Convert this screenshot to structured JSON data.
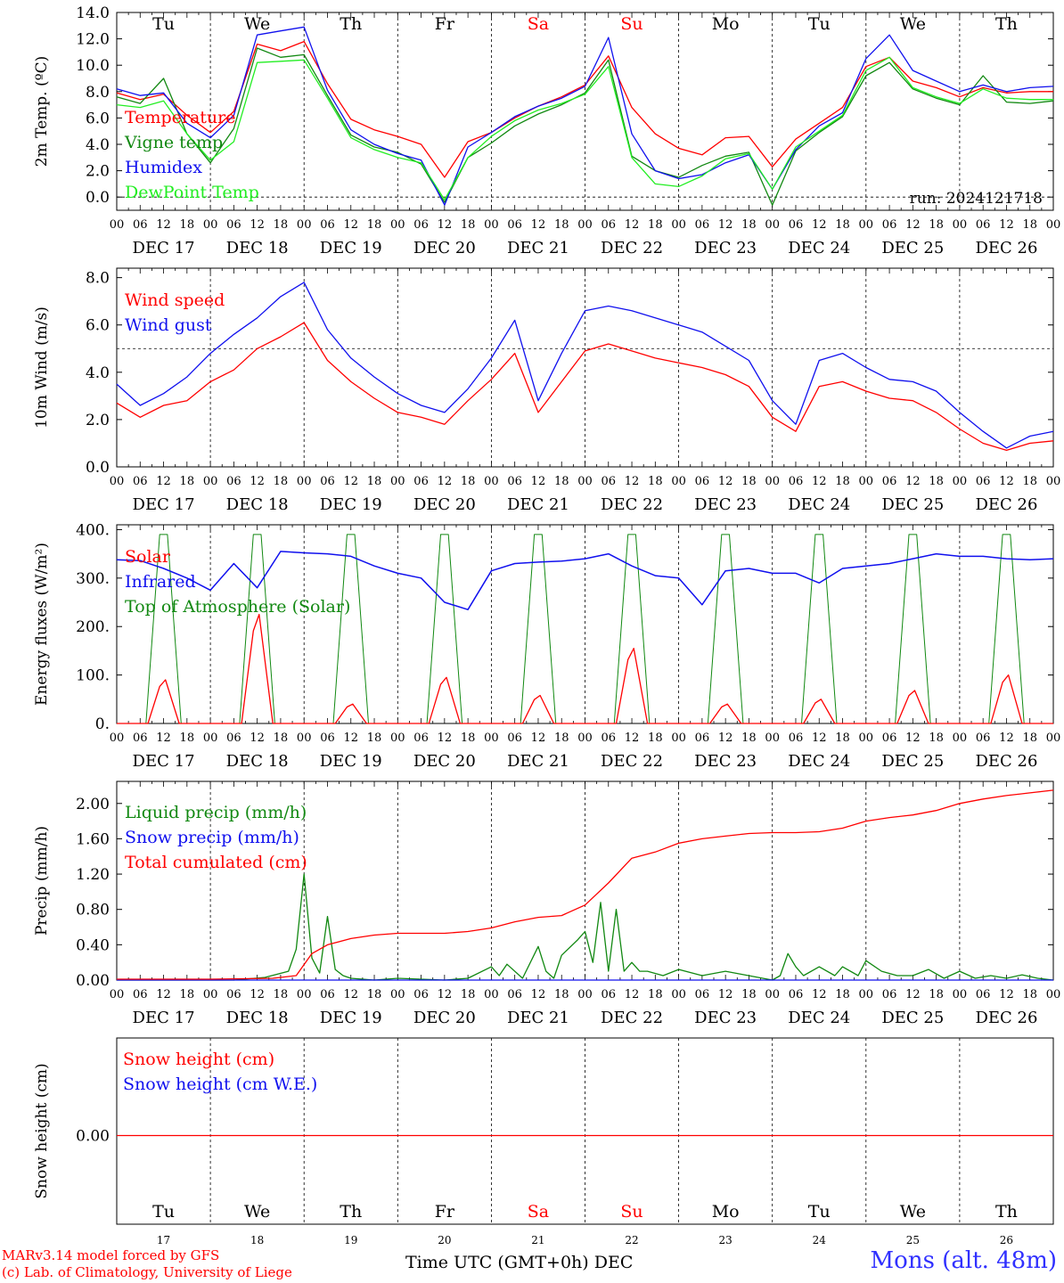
{
  "footer": {
    "credit_line1": "MARv3.14 model forced by GFS",
    "credit_line2": "(c) Lab. of Climatology, University of Liege",
    "xaxis_title": "Time UTC (GMT+0h) DEC",
    "station": "Mons (alt. 48m)"
  },
  "colors": {
    "red": "#ff0000",
    "green": "#118811",
    "blue": "#1010ee",
    "lightgreen": "#22ee22",
    "weekend": "#ff0000"
  },
  "chart_data": [
    {
      "type": "line",
      "id": "temp",
      "ylabel": "2m Temp. (ºC)",
      "ylim": [
        -1,
        14
      ],
      "yticks": [
        "14.0",
        "12.0",
        "10.0",
        "8.0",
        "6.0",
        "4.0",
        "2.0",
        "0.0"
      ],
      "ytick_values": [
        14,
        12,
        10,
        8,
        6,
        4,
        2,
        0
      ],
      "reference_line": 0,
      "annotation": "run: 2024121718",
      "day_labels_top": [
        "Tu",
        "We",
        "Th",
        "Fr",
        "Sa",
        "Su",
        "Mo",
        "Tu",
        "We",
        "Th"
      ],
      "weekend_days": [
        4,
        5
      ],
      "hour_ticks": [
        "00",
        "06",
        "12",
        "18"
      ],
      "end_tick": "00",
      "date_labels": [
        "DEC 17",
        "DEC 18",
        "DEC 19",
        "DEC 20",
        "DEC 21",
        "DEC 22",
        "DEC 23",
        "DEC 24",
        "DEC 25",
        "DEC 26"
      ],
      "x_hours": [
        0,
        6,
        12,
        18,
        24,
        30,
        36,
        42,
        48,
        54,
        60,
        66,
        72,
        78,
        84,
        90,
        96,
        102,
        108,
        114,
        120,
        126,
        132,
        138,
        144,
        150,
        156,
        162,
        168,
        174,
        180,
        186,
        192,
        198,
        204,
        210,
        216,
        222,
        228,
        234,
        240
      ],
      "series": [
        {
          "name": "Temperature",
          "color_key": "red",
          "values": [
            7.9,
            7.4,
            7.8,
            6.2,
            4.9,
            6.5,
            11.6,
            11.1,
            11.8,
            8.6,
            5.9,
            5.1,
            4.6,
            4.0,
            1.5,
            4.2,
            4.9,
            6.0,
            6.9,
            7.6,
            8.5,
            10.7,
            6.8,
            4.8,
            3.7,
            3.2,
            4.5,
            4.6,
            2.3,
            4.4,
            5.6,
            6.8,
            9.9,
            10.6,
            8.8,
            8.3,
            7.6,
            8.3,
            7.9,
            8.0,
            8.0
          ]
        },
        {
          "name": "Vigne temp",
          "color_key": "green",
          "values": [
            7.6,
            7.1,
            9.0,
            4.8,
            2.6,
            5.2,
            11.3,
            10.6,
            10.8,
            7.7,
            4.7,
            3.8,
            3.4,
            2.5,
            -0.4,
            3.0,
            4.1,
            5.4,
            6.3,
            7.0,
            7.9,
            10.4,
            3.1,
            2.0,
            1.5,
            2.4,
            3.1,
            3.4,
            -0.6,
            3.5,
            4.9,
            6.1,
            9.2,
            10.2,
            8.2,
            7.5,
            7.0,
            9.2,
            7.2,
            7.1,
            7.3
          ]
        },
        {
          "name": "Humidex",
          "color_key": "blue",
          "values": [
            8.2,
            7.7,
            7.9,
            5.6,
            4.5,
            6.2,
            12.3,
            12.6,
            12.9,
            8.1,
            5.1,
            4.0,
            3.3,
            2.8,
            -0.6,
            3.8,
            4.9,
            6.1,
            6.9,
            7.5,
            8.4,
            12.1,
            4.8,
            2.0,
            1.4,
            1.7,
            2.6,
            3.2,
            0.6,
            3.6,
            5.4,
            6.4,
            10.5,
            12.3,
            9.6,
            8.8,
            8.0,
            8.5,
            8.0,
            8.3,
            8.4
          ]
        },
        {
          "name": "DewPoint Temp",
          "color_key": "lightgreen",
          "values": [
            7.0,
            6.8,
            7.3,
            4.8,
            2.8,
            4.2,
            10.2,
            10.3,
            10.4,
            7.5,
            4.5,
            3.6,
            3.0,
            2.6,
            -0.2,
            3.0,
            4.6,
            5.8,
            6.6,
            7.1,
            7.8,
            9.9,
            3.0,
            1.0,
            0.8,
            1.6,
            2.9,
            3.3,
            0.6,
            3.8,
            5.0,
            6.2,
            9.6,
            10.6,
            8.3,
            7.6,
            7.1,
            8.2,
            7.5,
            7.4,
            7.4
          ]
        }
      ]
    },
    {
      "type": "line",
      "id": "wind",
      "ylabel": "10m Wind (m/s)",
      "ylim": [
        0,
        8.4
      ],
      "yticks": [
        "8.0",
        "6.0",
        "4.0",
        "2.0",
        "0.0"
      ],
      "ytick_values": [
        8,
        6,
        4,
        2,
        0
      ],
      "reference_line": 5,
      "hour_ticks": [
        "00",
        "06",
        "12",
        "18"
      ],
      "end_tick": "00",
      "date_labels": [
        "DEC 17",
        "DEC 18",
        "DEC 19",
        "DEC 20",
        "DEC 21",
        "DEC 22",
        "DEC 23",
        "DEC 24",
        "DEC 25",
        "DEC 26"
      ],
      "x_hours": [
        0,
        6,
        12,
        18,
        24,
        30,
        36,
        42,
        48,
        54,
        60,
        66,
        72,
        78,
        84,
        90,
        96,
        102,
        108,
        114,
        120,
        126,
        132,
        138,
        144,
        150,
        156,
        162,
        168,
        174,
        180,
        186,
        192,
        198,
        204,
        210,
        216,
        222,
        228,
        234,
        240
      ],
      "series": [
        {
          "name": "Wind speed",
          "color_key": "red",
          "values": [
            2.7,
            2.1,
            2.6,
            2.8,
            3.6,
            4.1,
            5.0,
            5.5,
            6.1,
            4.5,
            3.6,
            2.9,
            2.3,
            2.1,
            1.8,
            2.8,
            3.7,
            4.8,
            2.3,
            3.6,
            4.9,
            5.2,
            4.9,
            4.6,
            4.4,
            4.2,
            3.9,
            3.4,
            2.1,
            1.5,
            3.4,
            3.6,
            3.2,
            2.9,
            2.8,
            2.3,
            1.6,
            1.0,
            0.7,
            1.0,
            1.1
          ]
        },
        {
          "name": "Wind gust",
          "color_key": "blue",
          "values": [
            3.5,
            2.6,
            3.1,
            3.8,
            4.8,
            5.6,
            6.3,
            7.2,
            7.8,
            5.8,
            4.6,
            3.8,
            3.1,
            2.6,
            2.3,
            3.3,
            4.6,
            6.2,
            2.8,
            4.8,
            6.6,
            6.8,
            6.6,
            6.3,
            6.0,
            5.7,
            5.1,
            4.5,
            2.8,
            1.8,
            4.5,
            4.8,
            4.2,
            3.7,
            3.6,
            3.2,
            2.3,
            1.5,
            0.8,
            1.3,
            1.5
          ]
        }
      ]
    },
    {
      "type": "line",
      "id": "energy",
      "ylabel": "Energy fluxes (W/m²)",
      "ylim": [
        0,
        410
      ],
      "yticks": [
        "400.",
        "300.",
        "200.",
        "100.",
        "0."
      ],
      "ytick_values": [
        400,
        300,
        200,
        100,
        0
      ],
      "hour_ticks": [
        "00",
        "06",
        "12",
        "18"
      ],
      "end_tick": "00",
      "date_labels": [
        "DEC 17",
        "DEC 18",
        "DEC 19",
        "DEC 20",
        "DEC 21",
        "DEC 22",
        "DEC 23",
        "DEC 24",
        "DEC 25",
        "DEC 26"
      ],
      "day_peaks": {
        "toa_peak": [
          390,
          390,
          390,
          390,
          390,
          390,
          390,
          390,
          390,
          390
        ],
        "solar_peak": [
          90,
          225,
          40,
          95,
          58,
          155,
          40,
          50,
          68,
          100
        ]
      },
      "ir_x_hours": [
        0,
        6,
        12,
        18,
        24,
        30,
        36,
        42,
        48,
        54,
        60,
        66,
        72,
        78,
        84,
        90,
        96,
        102,
        108,
        114,
        120,
        126,
        132,
        138,
        144,
        150,
        156,
        162,
        168,
        174,
        180,
        186,
        192,
        198,
        204,
        210,
        216,
        222,
        228,
        234,
        240
      ],
      "series": [
        {
          "name": "Solar",
          "color_key": "red"
        },
        {
          "name": "Infrared",
          "color_key": "blue",
          "values": [
            338,
            336,
            320,
            300,
            275,
            330,
            280,
            355,
            352,
            350,
            345,
            325,
            310,
            300,
            250,
            235,
            315,
            330,
            333,
            335,
            340,
            350,
            325,
            305,
            300,
            245,
            315,
            320,
            310,
            310,
            290,
            320,
            325,
            330,
            340,
            350,
            345,
            345,
            340,
            338,
            340
          ]
        },
        {
          "name": "Top of Atmosphere (Solar)",
          "color_key": "green"
        }
      ]
    },
    {
      "type": "line",
      "id": "precip",
      "ylabel": "Precip (mm/h)",
      "ylim": [
        0,
        2.25
      ],
      "yticks": [
        "2.00",
        "1.60",
        "1.20",
        "0.80",
        "0.40",
        "0.00"
      ],
      "ytick_values": [
        2.0,
        1.6,
        1.2,
        0.8,
        0.4,
        0.0
      ],
      "hour_ticks": [
        "00",
        "06",
        "12",
        "18"
      ],
      "end_tick": "00",
      "date_labels": [
        "DEC 17",
        "DEC 18",
        "DEC 19",
        "DEC 20",
        "DEC 21",
        "DEC 22",
        "DEC 23",
        "DEC 24",
        "DEC 25",
        "DEC 26"
      ],
      "series": [
        {
          "name": "Liquid precip (mm/h)",
          "color_key": "green",
          "x_hours": [
            0,
            30,
            38,
            44,
            46,
            48,
            50,
            52,
            54,
            56,
            58,
            60,
            66,
            72,
            84,
            90,
            96,
            98,
            100,
            104,
            108,
            110,
            112,
            114,
            118,
            120,
            122,
            124,
            126,
            128,
            130,
            132,
            134,
            136,
            140,
            144,
            150,
            156,
            168,
            170,
            172,
            174,
            176,
            180,
            184,
            186,
            190,
            192,
            196,
            200,
            204,
            208,
            212,
            216,
            220,
            224,
            228,
            232,
            236,
            240
          ],
          "values": [
            0.0,
            0.0,
            0.03,
            0.1,
            0.35,
            1.2,
            0.25,
            0.08,
            0.72,
            0.12,
            0.05,
            0.02,
            0.0,
            0.02,
            0.0,
            0.02,
            0.15,
            0.05,
            0.18,
            0.02,
            0.38,
            0.1,
            0.02,
            0.28,
            0.45,
            0.55,
            0.2,
            0.88,
            0.1,
            0.8,
            0.1,
            0.2,
            0.1,
            0.1,
            0.05,
            0.12,
            0.05,
            0.1,
            0.0,
            0.05,
            0.3,
            0.15,
            0.05,
            0.15,
            0.05,
            0.15,
            0.05,
            0.22,
            0.1,
            0.05,
            0.05,
            0.12,
            0.02,
            0.1,
            0.02,
            0.05,
            0.02,
            0.06,
            0.02,
            0.0
          ]
        },
        {
          "name": "Snow precip (mm/h)",
          "color_key": "blue",
          "x_hours": [
            0,
            240
          ],
          "values": [
            0.0,
            0.0
          ]
        },
        {
          "name": "Total cumulated (cm)",
          "color_key": "red",
          "x_hours": [
            0,
            24,
            40,
            46,
            50,
            54,
            60,
            66,
            72,
            84,
            90,
            96,
            102,
            108,
            114,
            120,
            126,
            132,
            138,
            144,
            150,
            156,
            162,
            168,
            174,
            180,
            186,
            192,
            198,
            204,
            210,
            216,
            222,
            228,
            234,
            240
          ],
          "values": [
            0.01,
            0.01,
            0.02,
            0.05,
            0.3,
            0.4,
            0.47,
            0.51,
            0.53,
            0.53,
            0.55,
            0.59,
            0.66,
            0.71,
            0.73,
            0.85,
            1.1,
            1.38,
            1.45,
            1.55,
            1.6,
            1.63,
            1.66,
            1.67,
            1.67,
            1.68,
            1.72,
            1.8,
            1.84,
            1.87,
            1.92,
            2.0,
            2.05,
            2.09,
            2.12,
            2.15
          ]
        }
      ]
    },
    {
      "type": "line",
      "id": "snow",
      "ylabel": "Snow height (cm)",
      "yticks": [
        "0.00"
      ],
      "ytick_values": [
        0
      ],
      "day_labels_bottom": [
        "Tu",
        "We",
        "Th",
        "Fr",
        "Sa",
        "Su",
        "Mo",
        "Tu",
        "We",
        "Th"
      ],
      "weekend_days": [
        4,
        5
      ],
      "day_numbers": [
        "17",
        "18",
        "19",
        "20",
        "21",
        "22",
        "23",
        "24",
        "25",
        "26"
      ],
      "series": [
        {
          "name": "Snow height (cm)",
          "color_key": "red",
          "x_hours": [
            0,
            240
          ],
          "values": [
            0,
            0
          ]
        },
        {
          "name": "Snow height (cm W.E.)",
          "color_key": "blue",
          "x_hours": [
            0,
            240
          ],
          "values": [
            0,
            0
          ]
        }
      ]
    }
  ]
}
